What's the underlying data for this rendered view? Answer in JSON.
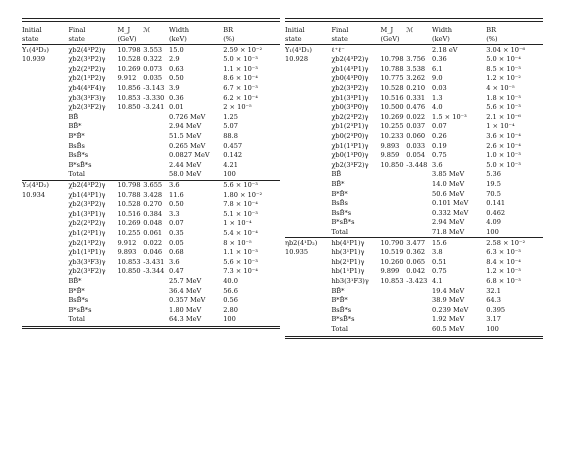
{
  "headers": [
    [
      "Initial",
      "Final",
      "M_J",
      "ℳ",
      "Width",
      "BR"
    ],
    [
      "state",
      "state",
      "(GeV)",
      "",
      "(keV)",
      "(%)"
    ]
  ],
  "left": {
    "sections": [
      {
        "initial": [
          "Υ₁(4³D₃)",
          "10.939"
        ],
        "rows": [
          [
            "χb2(4³P2)γ",
            "10.798",
            "3.553",
            "15.0",
            "2.59 × 10⁻²"
          ],
          [
            "χb2(3³P2)γ",
            "10.528",
            "0.322",
            "2.9",
            "5.0 × 10⁻³"
          ],
          [
            "χb2(2³P2)γ",
            "10.269",
            "0.073",
            "0.63",
            "1.1 × 10⁻³"
          ],
          [
            "χb2(1³P2)γ",
            "9.912",
            "0.035",
            "0.50",
            "8.6 × 10⁻⁴"
          ],
          [
            "χb4(4³F4)γ",
            "10.856",
            "-3.143",
            "3.9",
            "6.7 × 10⁻³"
          ],
          [
            "χb3(3³F3)γ",
            "10.853",
            "-3.330",
            "0.36",
            "6.2 × 10⁻⁴"
          ],
          [
            "χb2(3³F2)γ",
            "10.850",
            "-3.241",
            "0.01",
            "2 × 10⁻⁵"
          ],
          [
            "BB̄",
            "",
            "",
            "0.726 MeV",
            "1.25"
          ],
          [
            "BB̄*",
            "",
            "",
            "2.94 MeV",
            "5.07"
          ],
          [
            "B*B̄*",
            "",
            "",
            "51.5 MeV",
            "88.8"
          ],
          [
            "BsB̄s",
            "",
            "",
            "0.265 MeV",
            "0.457"
          ],
          [
            "BsB̄*s",
            "",
            "",
            "0.0827 MeV",
            "0.142"
          ],
          [
            "B*sB̄*s",
            "",
            "",
            "2.44 MeV",
            "4.21"
          ],
          [
            "Total",
            "",
            "",
            "58.0 MeV",
            "100"
          ]
        ]
      },
      {
        "initial": [
          "Υ₂(4³D₂)",
          "10.934"
        ],
        "rows": [
          [
            "χb2(4³P2)γ",
            "10.798",
            "3.655",
            "3.6",
            "5.6 × 10⁻³"
          ],
          [
            "χb1(4³P1)γ",
            "10.788",
            "3.428",
            "11.6",
            "1.80 × 10⁻²"
          ],
          [
            "χb2(3³P2)γ",
            "10.528",
            "0.270",
            "0.50",
            "7.8 × 10⁻⁴"
          ],
          [
            "χb1(3³P1)γ",
            "10.516",
            "0.384",
            "3.3",
            "5.1 × 10⁻³"
          ],
          [
            "χb2(2³P2)γ",
            "10.269",
            "0.048",
            "0.07",
            "1 × 10⁻⁴"
          ],
          [
            "χb1(2³P1)γ",
            "10.255",
            "0.061",
            "0.35",
            "5.4 × 10⁻⁴"
          ],
          [
            "χb2(1³P2)γ",
            "9.912",
            "0.022",
            "0.05",
            "8 × 10⁻⁵"
          ],
          [
            "χb1(1³P1)γ",
            "9.893",
            "0.046",
            "0.68",
            "1.1 × 10⁻³"
          ],
          [
            "χb3(3³F3)γ",
            "10.853",
            "-3.431",
            "3.6",
            "5.6 × 10⁻³"
          ],
          [
            "χb2(3³F2)γ",
            "10.850",
            "-3.344",
            "0.47",
            "7.3 × 10⁻⁴"
          ],
          [
            "BB̄*",
            "",
            "",
            "25.7 MeV",
            "40.0"
          ],
          [
            "B*B̄*",
            "",
            "",
            "36.4 MeV",
            "56.6"
          ],
          [
            "BsB̄*s",
            "",
            "",
            "0.357 MeV",
            "0.56"
          ],
          [
            "B*sB̄*s",
            "",
            "",
            "1.80 MeV",
            "2.80"
          ],
          [
            "Total",
            "",
            "",
            "64.3 MeV",
            "100"
          ]
        ]
      }
    ]
  },
  "right": {
    "sections": [
      {
        "initial": [
          "Υ₁(4¹D₁)",
          "10.928"
        ],
        "rows": [
          [
            "ℓ⁺ℓ⁻",
            "",
            "",
            "2.18 eV",
            "3.04 × 10⁻⁶"
          ],
          [
            "χb2(4³P2)γ",
            "10.798",
            "3.756",
            "0.36",
            "5.0 × 10⁻⁴"
          ],
          [
            "χb1(4³P1)γ",
            "10.788",
            "3.538",
            "6.1",
            "8.5 × 10⁻³"
          ],
          [
            "χb0(4³P0)γ",
            "10.775",
            "3.262",
            "9.0",
            "1.2 × 10⁻²"
          ],
          [
            "χb2(3³P2)γ",
            "10.528",
            "0.210",
            "0.03",
            "4 × 10⁻⁵"
          ],
          [
            "χb1(3³P1)γ",
            "10.516",
            "0.331",
            "1.3",
            "1.8 × 10⁻³"
          ],
          [
            "χb0(3³P0)γ",
            "10.500",
            "0.476",
            "4.0",
            "5.6 × 10⁻³"
          ],
          [
            "χb2(2³P2)γ",
            "10.269",
            "0.022",
            "1.5 × 10⁻³",
            "2.1 × 10⁻⁶"
          ],
          [
            "χb1(2³P1)γ",
            "10.255",
            "0.037",
            "0.07",
            "1 × 10⁻⁴"
          ],
          [
            "χb0(2³P0)γ",
            "10.233",
            "0.060",
            "0.26",
            "3.6 × 10⁻⁴"
          ],
          [
            "χb1(1³P1)γ",
            "9.893",
            "0.033",
            "0.19",
            "2.6 × 10⁻⁴"
          ],
          [
            "χb0(1³P0)γ",
            "9.859",
            "0.054",
            "0.75",
            "1.0 × 10⁻³"
          ],
          [
            "χb2(3³F2)γ",
            "10.850",
            "-3.448",
            "3.6",
            "5.0 × 10⁻³"
          ],
          [
            "BB̄",
            "",
            "",
            "3.85 MeV",
            "5.36"
          ],
          [
            "BB̄*",
            "",
            "",
            "14.0 MeV",
            "19.5"
          ],
          [
            "B*B̄*",
            "",
            "",
            "50.6 MeV",
            "70.5"
          ],
          [
            "BsB̄s",
            "",
            "",
            "0.101 MeV",
            "0.141"
          ],
          [
            "BsB̄*s",
            "",
            "",
            "0.332 MeV",
            "0.462"
          ],
          [
            "B*sB̄*s",
            "",
            "",
            "2.94 MeV",
            "4.09"
          ],
          [
            "Total",
            "",
            "",
            "71.8 MeV",
            "100"
          ]
        ]
      },
      {
        "initial": [
          "ηb2(4¹D₂)",
          "10.935"
        ],
        "rows": [
          [
            "hb(4¹P1)γ",
            "10.790",
            "3.477",
            "15.6",
            "2.58 × 10⁻²"
          ],
          [
            "hb(3¹P1)γ",
            "10.519",
            "0.362",
            "3.8",
            "6.3 × 10⁻³"
          ],
          [
            "hb(2¹P1)γ",
            "10.260",
            "0.065",
            "0.51",
            "8.4 × 10⁻⁴"
          ],
          [
            "hb(1¹P1)γ",
            "9.899",
            "0.042",
            "0.75",
            "1.2 × 10⁻³"
          ],
          [
            "hb3(3¹F3)γ",
            "10.853",
            "-3.423",
            "4.1",
            "6.8 × 10⁻³"
          ],
          [
            "BB̄*",
            "",
            "",
            "19.4 MeV",
            "32.1"
          ],
          [
            "B*B̄*",
            "",
            "",
            "38.9 MeV",
            "64.3"
          ],
          [
            "BsB̄*s",
            "",
            "",
            "0.239 MeV",
            "0.395"
          ],
          [
            "B*sB̄*s",
            "",
            "",
            "1.92 MeV",
            "3.17"
          ],
          [
            "Total",
            "",
            "",
            "60.5 MeV",
            "100"
          ]
        ]
      }
    ]
  }
}
